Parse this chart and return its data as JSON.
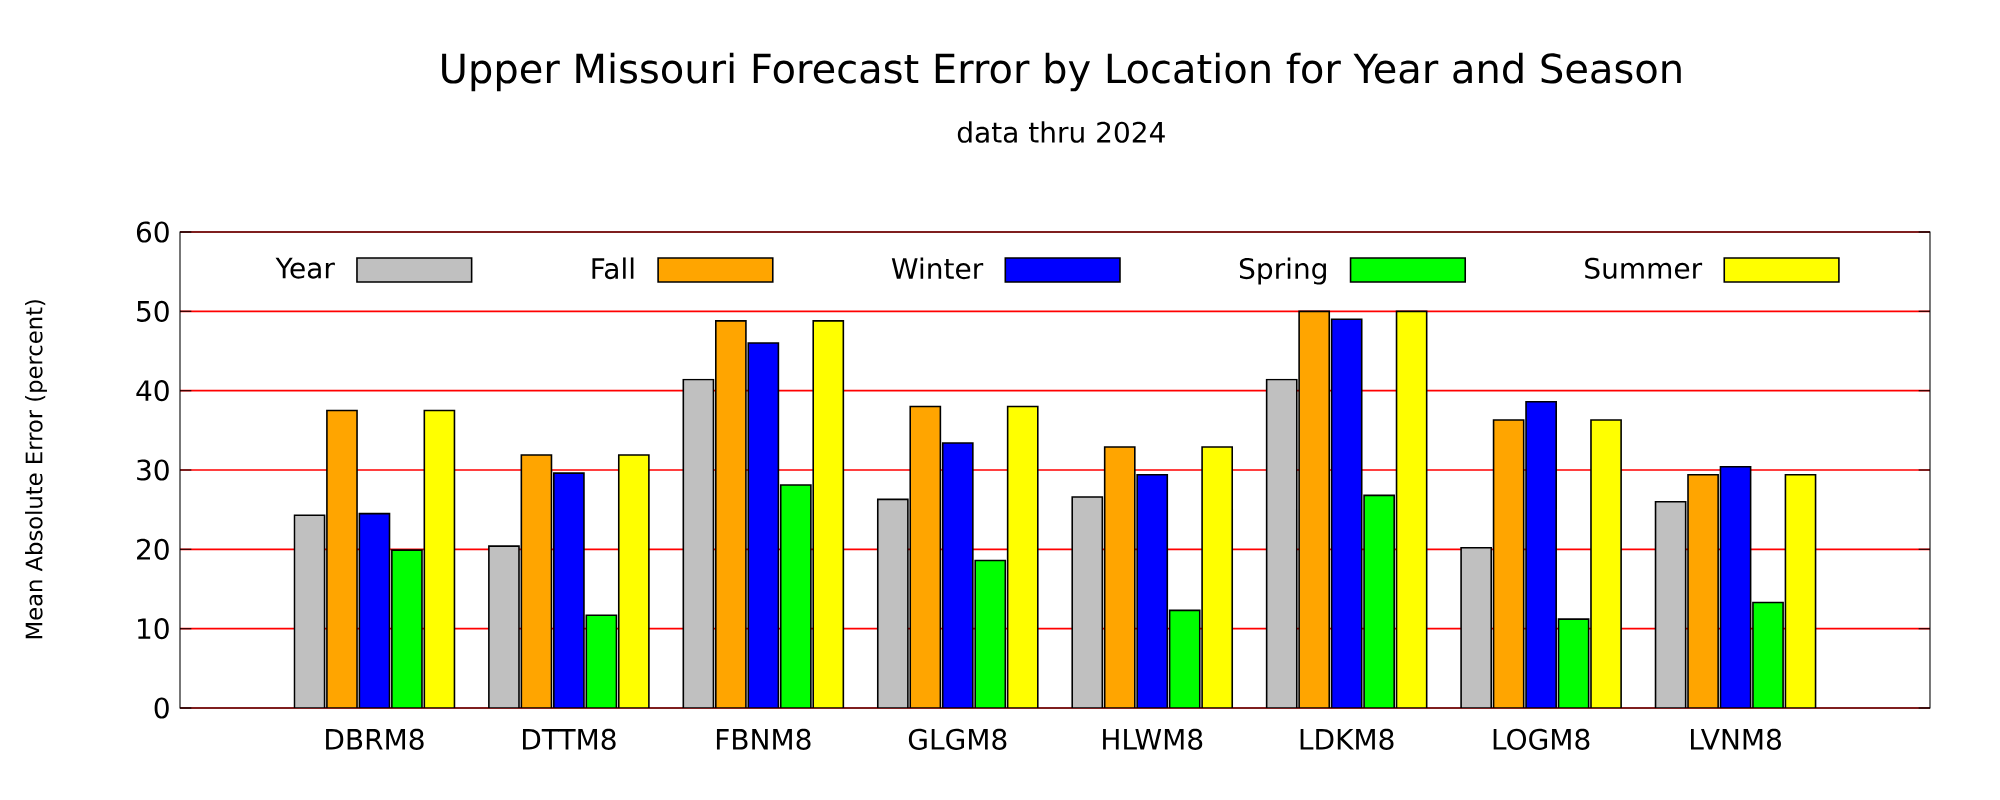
{
  "chart_data": {
    "type": "bar",
    "title": "Upper Missouri Forecast Error by Location for Year and Season",
    "subtitle": "data thru 2024",
    "ylabel": "Mean Absolute Error (percent)",
    "categories": [
      "DBRM8",
      "DTTM8",
      "FBNM8",
      "GLGM8",
      "HLWM8",
      "LDKM8",
      "LOGM8",
      "LVNM8"
    ],
    "series": [
      {
        "name": "Year",
        "color": "#c0c0c0",
        "values": [
          24.3,
          20.4,
          41.4,
          26.3,
          26.6,
          41.4,
          20.2,
          26.0
        ]
      },
      {
        "name": "Fall",
        "color": "#ffa500",
        "values": [
          37.5,
          31.9,
          48.8,
          38.0,
          32.9,
          50.0,
          36.3,
          29.4
        ]
      },
      {
        "name": "Winter",
        "color": "#0000ff",
        "values": [
          24.5,
          29.6,
          46.0,
          33.4,
          29.4,
          49.0,
          38.6,
          30.4
        ]
      },
      {
        "name": "Spring",
        "color": "#00ff00",
        "values": [
          19.9,
          11.7,
          28.1,
          18.6,
          12.3,
          26.8,
          11.2,
          13.3
        ]
      },
      {
        "name": "Summer",
        "color": "#ffff00",
        "values": [
          37.5,
          31.9,
          48.8,
          38.0,
          32.9,
          50.0,
          36.3,
          29.4
        ]
      }
    ],
    "ylim": [
      0,
      60
    ],
    "yticks": [
      0,
      10,
      20,
      30,
      40,
      50,
      60
    ],
    "grid": "y",
    "legend": "top"
  }
}
